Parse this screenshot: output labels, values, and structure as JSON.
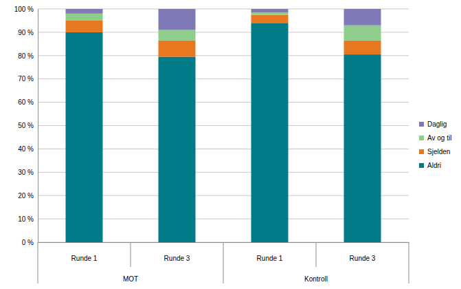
{
  "chart_data": {
    "type": "bar",
    "stacked": true,
    "categories": [
      "Runde 1",
      "Runde 3",
      "Runde 1",
      "Runde 3"
    ],
    "groups": [
      "MOT",
      "MOT",
      "Kontroll",
      "Kontroll"
    ],
    "series": [
      {
        "name": "Aldri",
        "color": "#007b87",
        "values": [
          90,
          79.5,
          94,
          80.5
        ]
      },
      {
        "name": "Sjelden",
        "color": "#e8781f",
        "values": [
          5,
          7,
          3.5,
          6
        ]
      },
      {
        "name": "Av og til",
        "color": "#8fce8a",
        "values": [
          3,
          4.5,
          1,
          6.5
        ]
      },
      {
        "name": "Daglig",
        "color": "#8079b8",
        "values": [
          2,
          9,
          1.5,
          7
        ]
      }
    ],
    "ylim": [
      0,
      100
    ],
    "yticks": [
      {
        "value": 0,
        "label": "0 %"
      },
      {
        "value": 10,
        "label": "10 %"
      },
      {
        "value": 20,
        "label": "20 %"
      },
      {
        "value": 30,
        "label": "30 %"
      },
      {
        "value": 40,
        "label": "40 %"
      },
      {
        "value": 50,
        "label": "50 %"
      },
      {
        "value": 60,
        "label": "60 %"
      },
      {
        "value": 70,
        "label": "70 %"
      },
      {
        "value": 80,
        "label": "80 %"
      },
      {
        "value": 90,
        "label": "90 %"
      },
      {
        "value": 100,
        "label": "100 %"
      }
    ],
    "grid": true,
    "legend": "right"
  }
}
